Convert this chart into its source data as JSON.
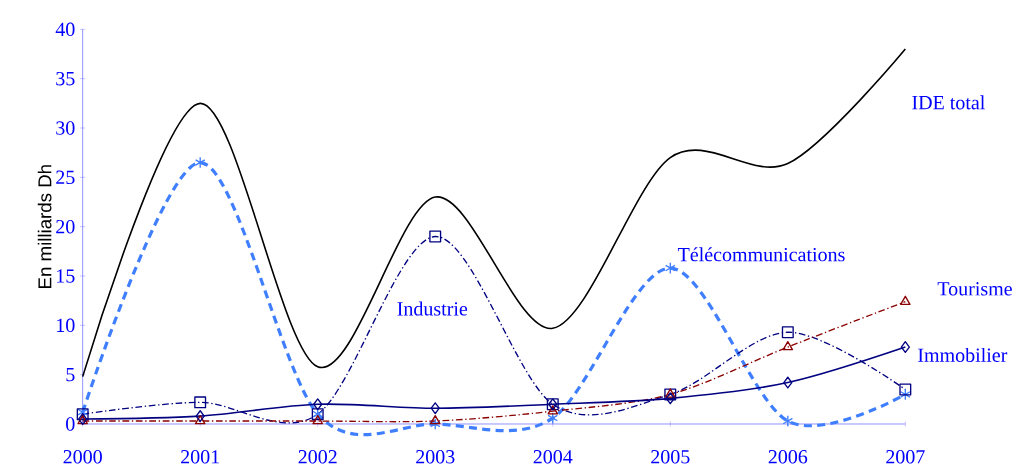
{
  "chart_data": {
    "type": "line",
    "ylabel": "En milliards Dh",
    "x": [
      2000,
      2001,
      2002,
      2003,
      2004,
      2005,
      2006,
      2007
    ],
    "xlim": [
      2000,
      2007
    ],
    "xticks": [
      2000,
      2001,
      2002,
      2003,
      2004,
      2005,
      2006,
      2007
    ],
    "ylim": [
      0,
      40
    ],
    "yticks": [
      0,
      5,
      10,
      15,
      20,
      25,
      30,
      35,
      40
    ],
    "grid": false,
    "legend": false,
    "series": [
      {
        "name": "IDE total",
        "color": "#000000",
        "marker": "none",
        "line_style": "solid",
        "values": [
          4.8,
          32.5,
          5.8,
          23,
          9.7,
          27,
          26.4,
          38
        ]
      },
      {
        "name": "Télécommunications",
        "color": "#3f7fff",
        "marker": "cross",
        "line_style": "dashed",
        "values": [
          1.2,
          26.5,
          1,
          0,
          0.6,
          15.8,
          0.3,
          3
        ]
      },
      {
        "name": "Industrie",
        "color": "#000080",
        "marker": "square",
        "line_style": "dashdot",
        "values": [
          1,
          2.2,
          1,
          19,
          2,
          3,
          9.3,
          3.5
        ]
      },
      {
        "name": "Tourisme",
        "color": "#8b0000",
        "marker": "triangle",
        "line_style": "dashdot",
        "values": [
          0.3,
          0.3,
          0.3,
          0.3,
          1.3,
          3,
          7.8,
          12.4
        ]
      },
      {
        "name": "Immobilier",
        "color": "#000080",
        "marker": "diamond",
        "line_style": "solid",
        "values": [
          0.5,
          0.8,
          2,
          1.6,
          2,
          2.6,
          4.2,
          7.8
        ]
      }
    ]
  }
}
